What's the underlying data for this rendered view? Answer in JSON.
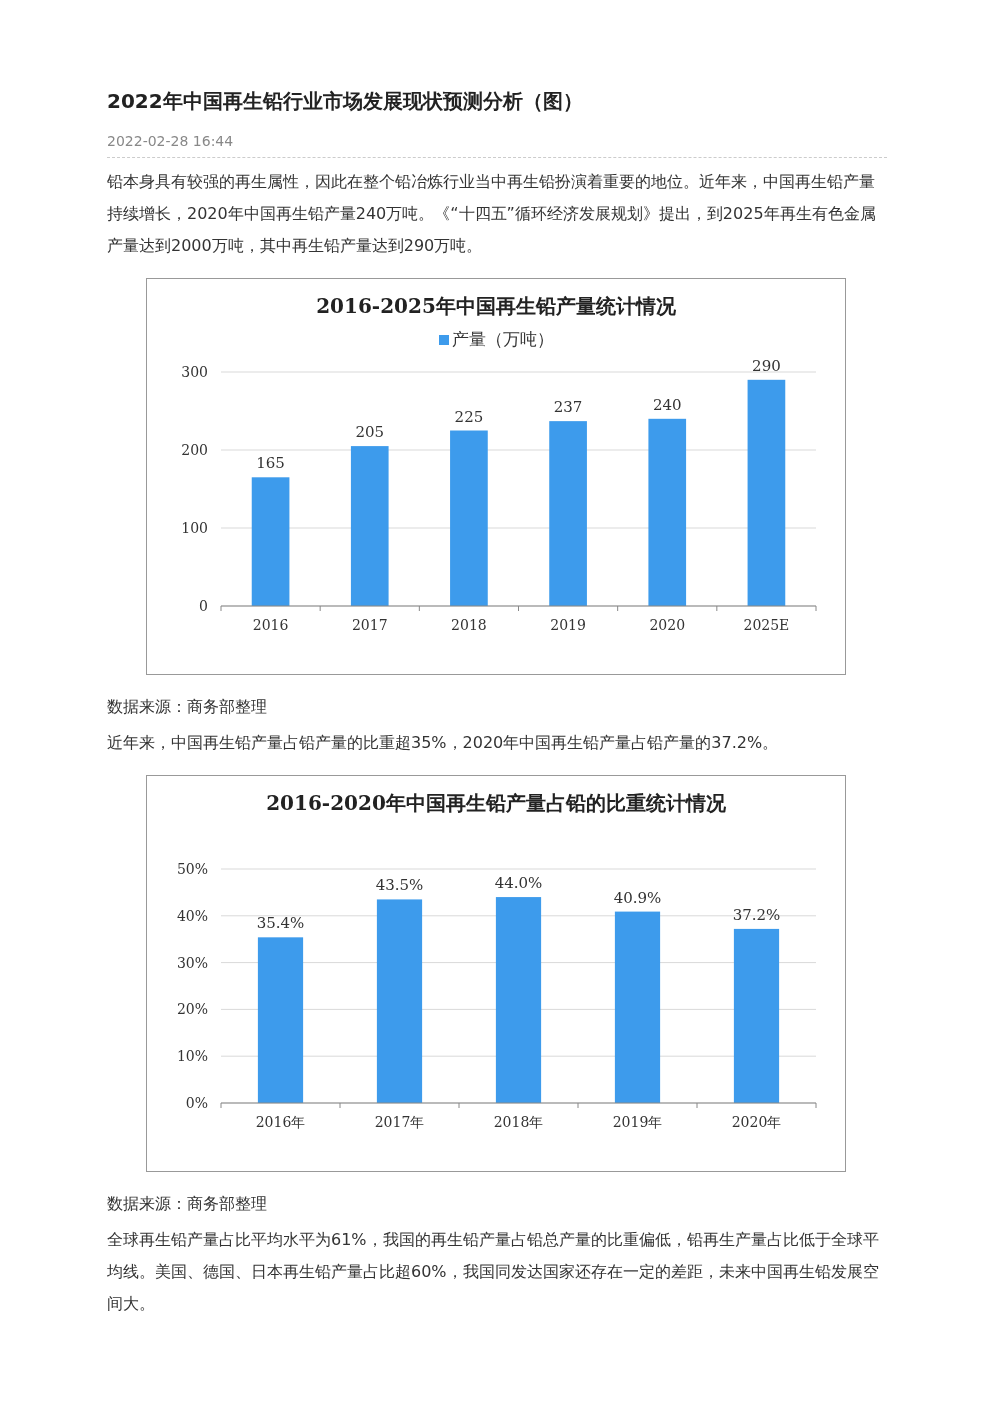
{
  "chart_data": [
    {
      "type": "bar",
      "title": "2016-2025年中国再生铅产量统计情况",
      "categories": [
        "2016",
        "2017",
        "2018",
        "2019",
        "2020",
        "2025E"
      ],
      "series": [
        {
          "name": "产量（万吨）",
          "color": "#3d9bec",
          "values": [
            165,
            205,
            225,
            237,
            240,
            290
          ]
        }
      ],
      "ylim": [
        0,
        300
      ],
      "yticks": [
        0,
        100,
        200,
        300
      ],
      "grid": "y",
      "legend": "top",
      "data_labels": true,
      "annotations": [
        "2022年中国再生铅行业市场发展现状预测分析（图）",
        "2022-02-28 16:44",
        "铅本身具有较强的再生属性，因此在整个铅冶炼行业当中再生铅扮演着重要的地位。近年来，中国再生铅产量持续增长，2020年中国再生铅产量240万吨。《“十四五”循环经济发展规划》提出，到2025年再生有色金属产量达到2000万吨，其中再生铅产量达到290万吨。",
        "数据来源：商务部整理"
      ]
    },
    {
      "type": "bar",
      "title": "2016-2020年中国再生铅产量占铅的比重统计情况",
      "categories": [
        "2016年",
        "2017年",
        "2018年",
        "2019年",
        "2020年"
      ],
      "series": [
        {
          "color": "#3d9bec",
          "values": [
            35.4,
            43.5,
            44.0,
            40.9,
            37.2
          ],
          "value_labels": [
            "35.4%",
            "43.5%",
            "44.0%",
            "40.9%",
            "37.2%"
          ]
        }
      ],
      "ylim": [
        0,
        50
      ],
      "yticks": [
        {
          "value": 0,
          "label": "0%"
        },
        {
          "value": 10,
          "label": "10%"
        },
        {
          "value": 20,
          "label": "20%"
        },
        {
          "value": 30,
          "label": "30%"
        },
        {
          "value": 40,
          "label": "40%"
        },
        {
          "value": 50,
          "label": "50%"
        }
      ],
      "grid": "y",
      "annotations": [
        "近年来，中国再生铅产量占铅产量的比重超35%，2020年中国再生铅产量占铅产量的37.2%。",
        "数据来源：商务部整理",
        "全球再生铅产量占比平均水平为61%，我国的再生铅产量占铅总产量的比重偏低，铅再生产量占比低于全球平均线。美国、德国、日本再生铅产量占比超60%，我国同发达国家还存在一定的差距，未来中国再生铅发展空间大。"
      ]
    }
  ]
}
